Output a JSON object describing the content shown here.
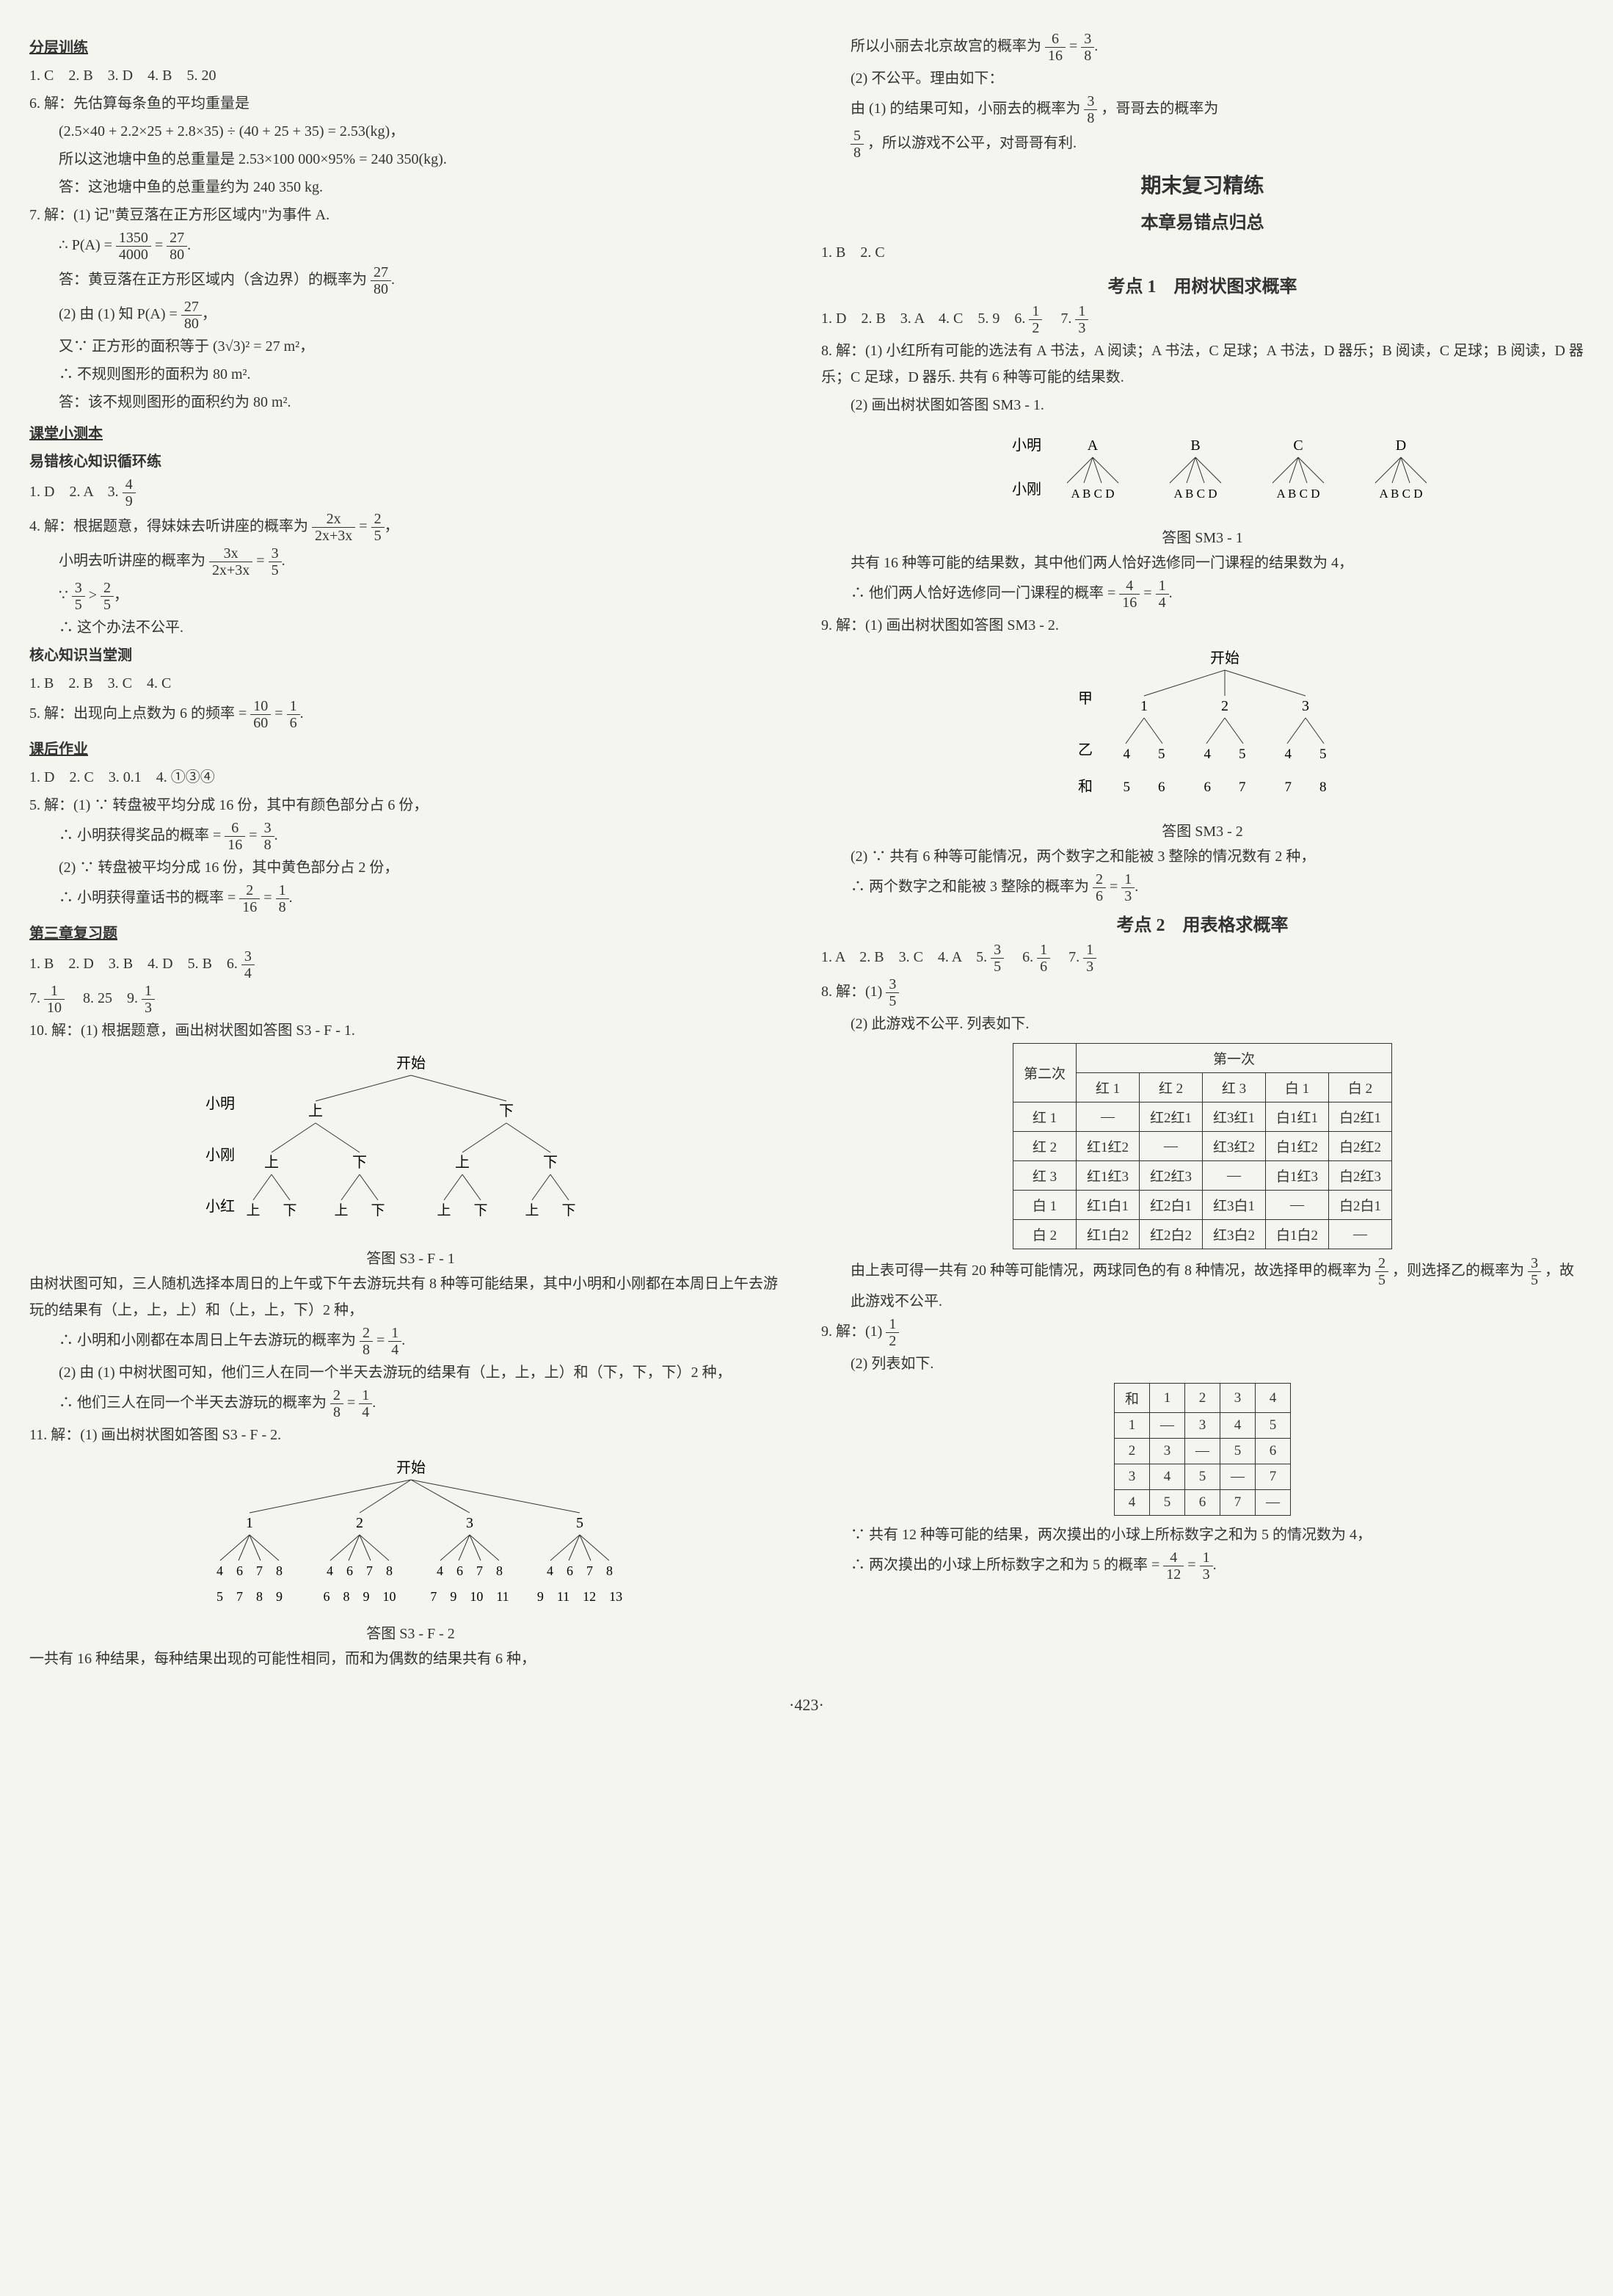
{
  "left": {
    "section1_header": "分层训练",
    "s1_l1": "1. C　2. B　3. D　4. B　5. 20",
    "s1_l2": "6. 解：先估算每条鱼的平均重量是",
    "s1_l3": "(2.5×40 + 2.2×25 + 2.8×35) ÷ (40 + 25 + 35) = 2.53(kg)，",
    "s1_l4": "所以这池塘中鱼的总重量是 2.53×100 000×95% = 240 350(kg).",
    "s1_l5": "答：这池塘中鱼的总重量约为 240 350 kg.",
    "s1_l6": "7. 解：(1) 记\"黄豆落在正方形区域内\"为事件 A.",
    "s1_l7a": "∴ P(A) =",
    "frac_1350_4000": {
      "n": "1350",
      "d": "4000"
    },
    "frac_27_80": {
      "n": "27",
      "d": "80"
    },
    "s1_l8a": "答：黄豆落在正方形区域内（含边界）的概率为",
    "s1_l9a": "(2) 由 (1) 知 P(A) =",
    "s1_l10": "又∵ 正方形的面积等于 (3√3)² = 27 m²，",
    "s1_l11": "∴ 不规则图形的面积为 80 m².",
    "s1_l12": "答：该不规则图形的面积约为 80 m².",
    "section2_header": "课堂小测本",
    "s2_sub1": "易错核心知识循环练",
    "s2_l1a": "1. D　2. A　3.",
    "frac_4_9": {
      "n": "4",
      "d": "9"
    },
    "s2_l2a": "4. 解：根据题意，得妹妹去听讲座的概率为",
    "frac_2x_sum": {
      "n": "2x",
      "d": "2x+3x"
    },
    "frac_2_5": {
      "n": "2",
      "d": "5"
    },
    "s2_l3a": "小明去听讲座的概率为",
    "frac_3x_sum": {
      "n": "3x",
      "d": "2x+3x"
    },
    "frac_3_5": {
      "n": "3",
      "d": "5"
    },
    "s2_l4a": "∵",
    "s2_l4b": ">",
    "s2_l5": "∴ 这个办法不公平.",
    "s2_sub2": "核心知识当堂测",
    "s2_l6": "1. B　2. B　3. C　4. C",
    "s2_l7a": "5. 解：出现向上点数为 6 的频率 =",
    "frac_10_60": {
      "n": "10",
      "d": "60"
    },
    "frac_1_6": {
      "n": "1",
      "d": "6"
    },
    "section3_header": "课后作业",
    "s3_l1": "1. D　2. C　3. 0.1　4. ①③④",
    "s3_l2": "5. 解：(1) ∵ 转盘被平均分成 16 份，其中有颜色部分占 6 份，",
    "s3_l3a": "∴ 小明获得奖品的概率 =",
    "frac_6_16": {
      "n": "6",
      "d": "16"
    },
    "frac_3_8": {
      "n": "3",
      "d": "8"
    },
    "s3_l4": "(2) ∵ 转盘被平均分成 16 份，其中黄色部分占 2 份，",
    "s3_l5a": "∴ 小明获得童话书的概率 =",
    "frac_2_16": {
      "n": "2",
      "d": "16"
    },
    "frac_1_8": {
      "n": "1",
      "d": "8"
    },
    "section4_header": "第三章复习题",
    "s4_l1a": "1. B　2. D　3. B　4. D　5. B　6.",
    "frac_3_4": {
      "n": "3",
      "d": "4"
    },
    "s4_l2a": "7.",
    "frac_1_10": {
      "n": "1",
      "d": "10"
    },
    "s4_l2b": "　8. 25　9.",
    "frac_1_3": {
      "n": "1",
      "d": "3"
    },
    "s4_l3": "10. 解：(1) 根据题意，画出树状图如答图 S3 - F - 1.",
    "tree1": {
      "root": "开始",
      "row_labels": [
        "小明",
        "小刚",
        "小红"
      ],
      "level1": [
        "上",
        "下"
      ],
      "level2": [
        "上",
        "下",
        "上",
        "下"
      ],
      "level3": [
        "上",
        "下",
        "上",
        "下",
        "上",
        "下",
        "上",
        "下"
      ],
      "caption": "答图 S3 - F - 1"
    },
    "s4_l4": "由树状图可知，三人随机选择本周日的上午或下午去游玩共有 8 种等可能结果，其中小明和小刚都在本周日上午去游玩的结果有（上，上，上）和（上，上，下）2 种，",
    "s4_l5a": "∴ 小明和小刚都在本周日上午去游玩的概率为",
    "frac_2_8": {
      "n": "2",
      "d": "8"
    },
    "frac_1_4": {
      "n": "1",
      "d": "4"
    },
    "s4_l6": "(2) 由 (1) 中树状图可知，他们三人在同一个半天去游玩的结果有（上，上，上）和（下，下，下）2 种，",
    "s4_l7a": "∴ 他们三人在同一个半天去游玩的概率为",
    "s4_l8": "11. 解：(1) 画出树状图如答图 S3 - F - 2.",
    "tree2": {
      "root": "开始",
      "level1": [
        "1",
        "2",
        "3",
        "5"
      ],
      "level2": [
        "4 6 7 8",
        "4 6 7 8",
        "4 6 7 8",
        "4 6 7 8"
      ],
      "sums": [
        "5　7　8　9",
        "6　8　9　10",
        "7　9　10　11",
        "9　11　12　13"
      ],
      "caption": "答图 S3 - F - 2"
    },
    "s4_l9": "一共有 16 种结果，每种结果出现的可能性相同，而和为偶数的结果共有 6 种，"
  },
  "right": {
    "r_l1a": "所以小丽去北京故宫的概率为",
    "frac_6_16": {
      "n": "6",
      "d": "16"
    },
    "frac_3_8": {
      "n": "3",
      "d": "8"
    },
    "r_l2": "(2) 不公平。理由如下：",
    "r_l3a": "由 (1) 的结果可知，小丽去的概率为",
    "r_l3b": "，哥哥去的概率为",
    "frac_5_8": {
      "n": "5",
      "d": "8"
    },
    "r_l4": "，所以游戏不公平，对哥哥有利.",
    "title1": "期末复习精练",
    "title2": "本章易错点归总",
    "r_l5": "1. B　2. C",
    "kd1_title": "考点 1　用树状图求概率",
    "r_l6a": "1. D　2. B　3. A　4. C　5. 9　6.",
    "frac_1_2": {
      "n": "1",
      "d": "2"
    },
    "r_l6b": "　7.",
    "frac_1_3": {
      "n": "1",
      "d": "3"
    },
    "r_l7": "8. 解：(1) 小红所有可能的选法有 A 书法，A 阅读；A 书法，C 足球；A 书法，D 器乐；B 阅读，C 足球；B 阅读，D 器乐；C 足球，D 器乐. 共有 6 种等可能的结果数.",
    "r_l8": "(2) 画出树状图如答图 SM3 - 1.",
    "tree3": {
      "row1_label": "小明",
      "row1": [
        "A",
        "B",
        "C",
        "D"
      ],
      "row2_label": "小刚",
      "row2_groups": [
        "A B C D",
        "A B C D",
        "A B C D",
        "A B C D"
      ],
      "caption": "答图 SM3 - 1"
    },
    "r_l9": "共有 16 种等可能的结果数，其中他们两人恰好选修同一门课程的结果数为 4，",
    "r_l10a": "∴ 他们两人恰好选修同一门课程的概率 =",
    "frac_4_16": {
      "n": "4",
      "d": "16"
    },
    "frac_1_4": {
      "n": "1",
      "d": "4"
    },
    "r_l11": "9. 解：(1) 画出树状图如答图 SM3 - 2.",
    "tree4": {
      "root": "开始",
      "labels": [
        "甲",
        "乙",
        "和"
      ],
      "l1": [
        "1",
        "2",
        "3"
      ],
      "l2": [
        "4　5",
        "4　5",
        "4　5"
      ],
      "sums": [
        "5　6",
        "6　7",
        "7　8"
      ],
      "caption": "答图 SM3 - 2"
    },
    "r_l12": "(2) ∵ 共有 6 种等可能情况，两个数字之和能被 3 整除的情况数有 2 种，",
    "r_l13a": "∴ 两个数字之和能被 3 整除的概率为",
    "frac_2_6": {
      "n": "2",
      "d": "6"
    },
    "kd2_title": "考点 2　用表格求概率",
    "r_l14a": "1. A　2. B　3. C　4. A　5.",
    "frac_3_5": {
      "n": "3",
      "d": "5"
    },
    "r_l14b": "　6.",
    "frac_1_6": {
      "n": "1",
      "d": "6"
    },
    "r_l14c": "　7.",
    "r_l15a": "8. 解：(1)",
    "r_l16": "(2) 此游戏不公平. 列表如下.",
    "table1": {
      "corner": "第二次",
      "colgroup": "第一次",
      "cols": [
        "红 1",
        "红 2",
        "红 3",
        "白 1",
        "白 2"
      ],
      "rows": [
        {
          "h": "红 1",
          "c": [
            "—",
            "红2红1",
            "红3红1",
            "白1红1",
            "白2红1"
          ]
        },
        {
          "h": "红 2",
          "c": [
            "红1红2",
            "—",
            "红3红2",
            "白1红2",
            "白2红2"
          ]
        },
        {
          "h": "红 3",
          "c": [
            "红1红3",
            "红2红3",
            "—",
            "白1红3",
            "白2红3"
          ]
        },
        {
          "h": "白 1",
          "c": [
            "红1白1",
            "红2白1",
            "红3白1",
            "—",
            "白2白1"
          ]
        },
        {
          "h": "白 2",
          "c": [
            "红1白2",
            "红2白2",
            "红3白2",
            "白1白2",
            "—"
          ]
        }
      ]
    },
    "r_l17a": "由上表可得一共有 20 种等可能情况，两球同色的有 8 种情况，故选择甲的概率为",
    "frac_2_5": {
      "n": "2",
      "d": "5"
    },
    "r_l17b": "，则选择乙的概率为",
    "r_l17c": "，故此游戏不公平.",
    "r_l18a": "9. 解：(1)",
    "r_l19": "(2) 列表如下.",
    "table2": {
      "corner": "和",
      "cols": [
        "1",
        "2",
        "3",
        "4"
      ],
      "rows": [
        {
          "h": "1",
          "c": [
            "—",
            "3",
            "4",
            "5"
          ]
        },
        {
          "h": "2",
          "c": [
            "3",
            "—",
            "5",
            "6"
          ]
        },
        {
          "h": "3",
          "c": [
            "4",
            "5",
            "—",
            "7"
          ]
        },
        {
          "h": "4",
          "c": [
            "5",
            "6",
            "7",
            "—"
          ]
        }
      ]
    },
    "r_l20": "∵ 共有 12 种等可能的结果，两次摸出的小球上所标数字之和为 5 的情况数为 4，",
    "r_l21a": "∴ 两次摸出的小球上所标数字之和为 5 的概率 =",
    "frac_4_12": {
      "n": "4",
      "d": "12"
    }
  },
  "page_num": "·423·",
  "colors": {
    "bg": "#f5f5f0",
    "text": "#333333",
    "border": "#333333"
  }
}
